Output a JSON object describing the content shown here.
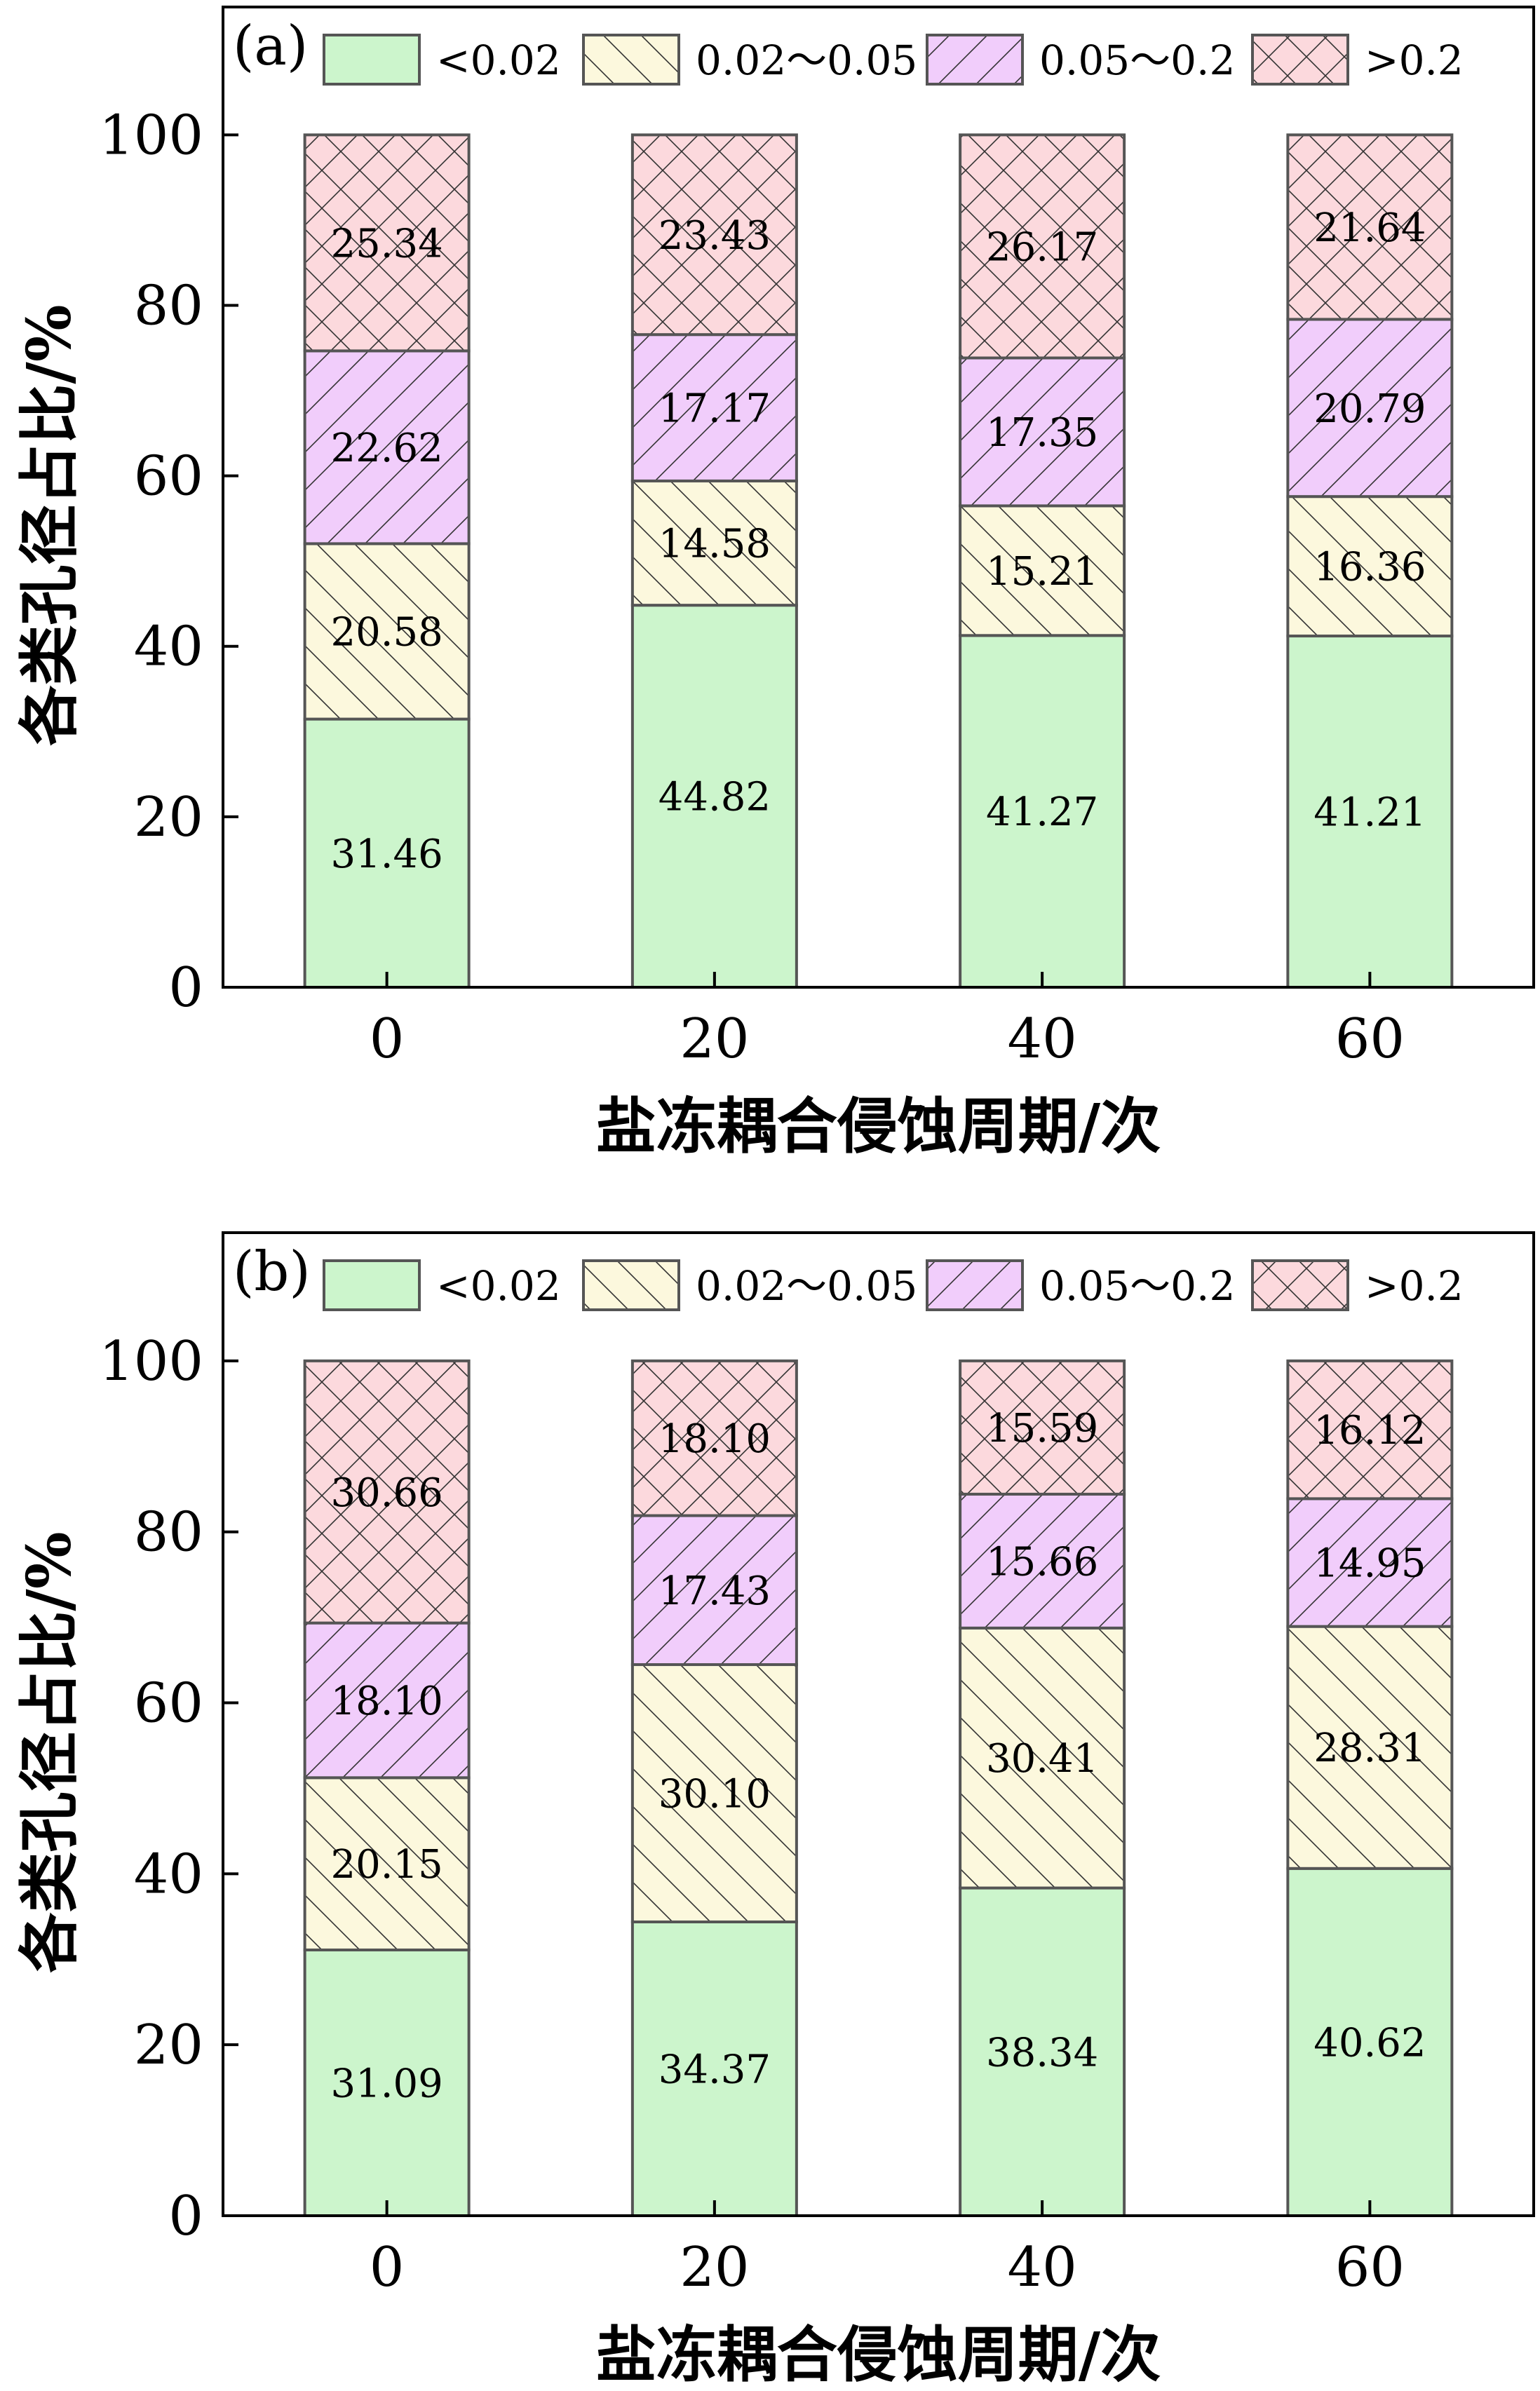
{
  "chart_data": [
    {
      "type": "bar",
      "stacked": true,
      "panel_label": "(a)",
      "categories": [
        "0",
        "20",
        "40",
        "60"
      ],
      "series": [
        {
          "name": "<0.02",
          "values": [
            31.46,
            44.82,
            41.27,
            41.21
          ],
          "labels": [
            "31.46",
            "44.82",
            "41.27",
            "41.21"
          ],
          "color": "#ccf5cc",
          "pattern": "none"
        },
        {
          "name": "0.02～0.05",
          "values": [
            20.58,
            14.58,
            15.21,
            16.36
          ],
          "labels": [
            "20.58",
            "14.58",
            "15.21",
            "16.36"
          ],
          "color": "#fcf8dd",
          "pattern": "backslash"
        },
        {
          "name": "0.05～0.2",
          "values": [
            22.62,
            17.17,
            17.35,
            20.79
          ],
          "labels": [
            "22.62",
            "17.17",
            "17.35",
            "20.79"
          ],
          "color": "#f1cdfb",
          "pattern": "slash"
        },
        {
          "name": ">0.2",
          "values": [
            25.34,
            23.43,
            26.17,
            21.64
          ],
          "labels": [
            "25.34",
            "23.43",
            "26.17",
            "21.64"
          ],
          "color": "#fcd9dd",
          "pattern": "cross"
        }
      ],
      "xlabel": "盐冻耦合侵蚀周期/次",
      "ylabel": "各类孔径占比/%",
      "ylim": [
        0,
        115
      ],
      "yticks": [
        "0",
        "20",
        "40",
        "60",
        "80",
        "100"
      ],
      "legend_position": "top",
      "grid": false
    },
    {
      "type": "bar",
      "stacked": true,
      "panel_label": "(b)",
      "categories": [
        "0",
        "20",
        "40",
        "60"
      ],
      "series": [
        {
          "name": "<0.02",
          "values": [
            31.09,
            34.37,
            38.34,
            40.62
          ],
          "labels": [
            "31.09",
            "34.37",
            "38.34",
            "40.62"
          ],
          "color": "#ccf5cc",
          "pattern": "none"
        },
        {
          "name": "0.02～0.05",
          "values": [
            20.15,
            30.1,
            30.41,
            28.31
          ],
          "labels": [
            "20.15",
            "30.10",
            "30.41",
            "28.31"
          ],
          "color": "#fcf8dd",
          "pattern": "backslash"
        },
        {
          "name": "0.05～0.2",
          "values": [
            18.1,
            17.43,
            15.66,
            14.95
          ],
          "labels": [
            "18.10",
            "17.43",
            "15.66",
            "14.95"
          ],
          "color": "#f1cdfb",
          "pattern": "slash"
        },
        {
          "name": ">0.2",
          "values": [
            30.66,
            18.1,
            15.59,
            16.12
          ],
          "labels": [
            "30.66",
            "18.10",
            "15.59",
            "16.12"
          ],
          "color": "#fcd9dd",
          "pattern": "cross"
        }
      ],
      "xlabel": "盐冻耦合侵蚀周期/次",
      "ylabel": "各类孔径占比/%",
      "ylim": [
        0,
        115
      ],
      "yticks": [
        "0",
        "20",
        "40",
        "60",
        "80",
        "100"
      ],
      "legend_position": "top",
      "grid": false
    }
  ]
}
